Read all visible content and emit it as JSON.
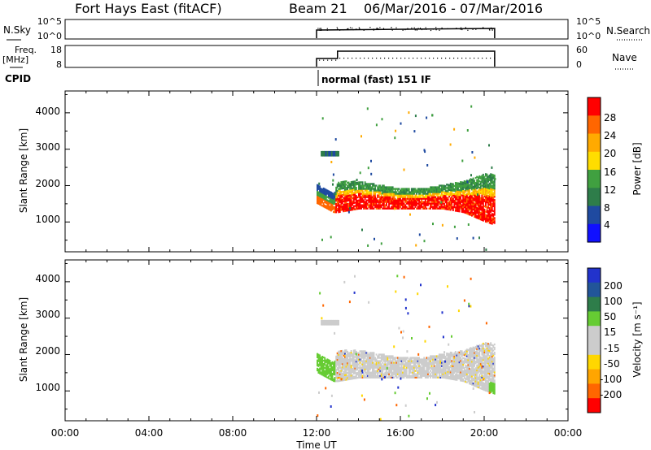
{
  "header": {
    "title": "Fort Hays East (fitACF)",
    "beam": "Beam 21",
    "date_range": "06/Mar/2016 - 07/Mar/2016"
  },
  "params": {
    "nsky_label": "N.Sky",
    "nsky_ticks": [
      "10^5",
      "10^0"
    ],
    "nsearch_label": "N.Search",
    "nsearch_ticks": [
      "10^5",
      "10^0"
    ],
    "freq_label_1": "Freq.",
    "freq_label_2": "[MHz]",
    "freq_ticks": [
      "18",
      "8"
    ],
    "nave_label": "Nave",
    "nave_ticks": [
      "60",
      "0"
    ],
    "cpid_label": "CPID",
    "cpid_text": "normal (fast) 151 IF"
  },
  "panels": {
    "power_ylabel": "Slant Range [km]",
    "velocity_ylabel": "Slant Range [km]",
    "range_ticks": [
      "4000",
      "3000",
      "2000",
      "1000"
    ]
  },
  "colorbars": {
    "power": {
      "label": "Power [dB]",
      "ticks": [
        "28",
        "24",
        "20",
        "16",
        "12",
        "8",
        "4"
      ],
      "colors": [
        "#ff0000",
        "#ff6600",
        "#ffaa00",
        "#ffdd00",
        "#40a040",
        "#2e7d4a",
        "#1f4aa0",
        "#1010ff"
      ]
    },
    "velocity": {
      "label": "Velocity [m s⁻¹]",
      "ticks": [
        "200",
        "100",
        "50",
        "15",
        "-15",
        "-50",
        "-100",
        "-200"
      ],
      "colors": [
        "#2233cc",
        "#225599",
        "#2e7d4a",
        "#66cc33",
        "#cccccc",
        "#cccccc",
        "#ffd700",
        "#ffa500",
        "#ff6600",
        "#ff0000"
      ]
    }
  },
  "xaxis": {
    "label": "Time UT",
    "ticks": [
      "00:00",
      "04:00",
      "08:00",
      "12:00",
      "16:00",
      "20:00",
      "00:00"
    ]
  },
  "chart_data": {
    "type": "heatmap",
    "title": "Fort Hays East (fitACF)",
    "xlabel": "Time UT",
    "ylabel": "Slant Range [km]",
    "xlim_hours": [
      0,
      24
    ],
    "ylim_km": [
      180,
      4600
    ],
    "data_start_hour": 12.0,
    "data_end_hour": 20.5,
    "power_panel": {
      "colorbar": "Power [dB]",
      "range_db": [
        0,
        32
      ],
      "main_band": [
        {
          "hour": 12.0,
          "lower_km": 1500,
          "upper_km": 2000,
          "dB": 14
        },
        {
          "hour": 12.8,
          "lower_km": 1250,
          "upper_km": 1750,
          "dB": 18
        },
        {
          "hour": 13.0,
          "lower_km": 1250,
          "upper_km": 2100,
          "dB": 28
        },
        {
          "hour": 14.0,
          "lower_km": 1350,
          "upper_km": 2100,
          "dB": 26
        },
        {
          "hour": 15.0,
          "lower_km": 1350,
          "upper_km": 2000,
          "dB": 26
        },
        {
          "hour": 16.0,
          "lower_km": 1350,
          "upper_km": 1900,
          "dB": 26
        },
        {
          "hour": 17.0,
          "lower_km": 1350,
          "upper_km": 1900,
          "dB": 26
        },
        {
          "hour": 18.0,
          "lower_km": 1350,
          "upper_km": 2000,
          "dB": 24
        },
        {
          "hour": 19.0,
          "lower_km": 1250,
          "upper_km": 2100,
          "dB": 22
        },
        {
          "hour": 20.0,
          "lower_km": 1000,
          "upper_km": 2300,
          "dB": 20
        },
        {
          "hour": 20.5,
          "lower_km": 900,
          "upper_km": 2300,
          "dB": 18
        }
      ],
      "patches": [
        {
          "hour_start": 12.2,
          "hour_end": 13.0,
          "lower_km": 2800,
          "upper_km": 2950,
          "dB": 8
        }
      ]
    },
    "velocity_panel": {
      "colorbar": "Velocity [m s⁻¹]",
      "range_ms": [
        -250,
        250
      ],
      "main_band_velocity_ms": 0,
      "early_echo": {
        "hour_start": 12.0,
        "hour_end": 12.8,
        "lower_km": 1200,
        "upper_km": 2000,
        "velocity_ms": 30
      }
    }
  }
}
